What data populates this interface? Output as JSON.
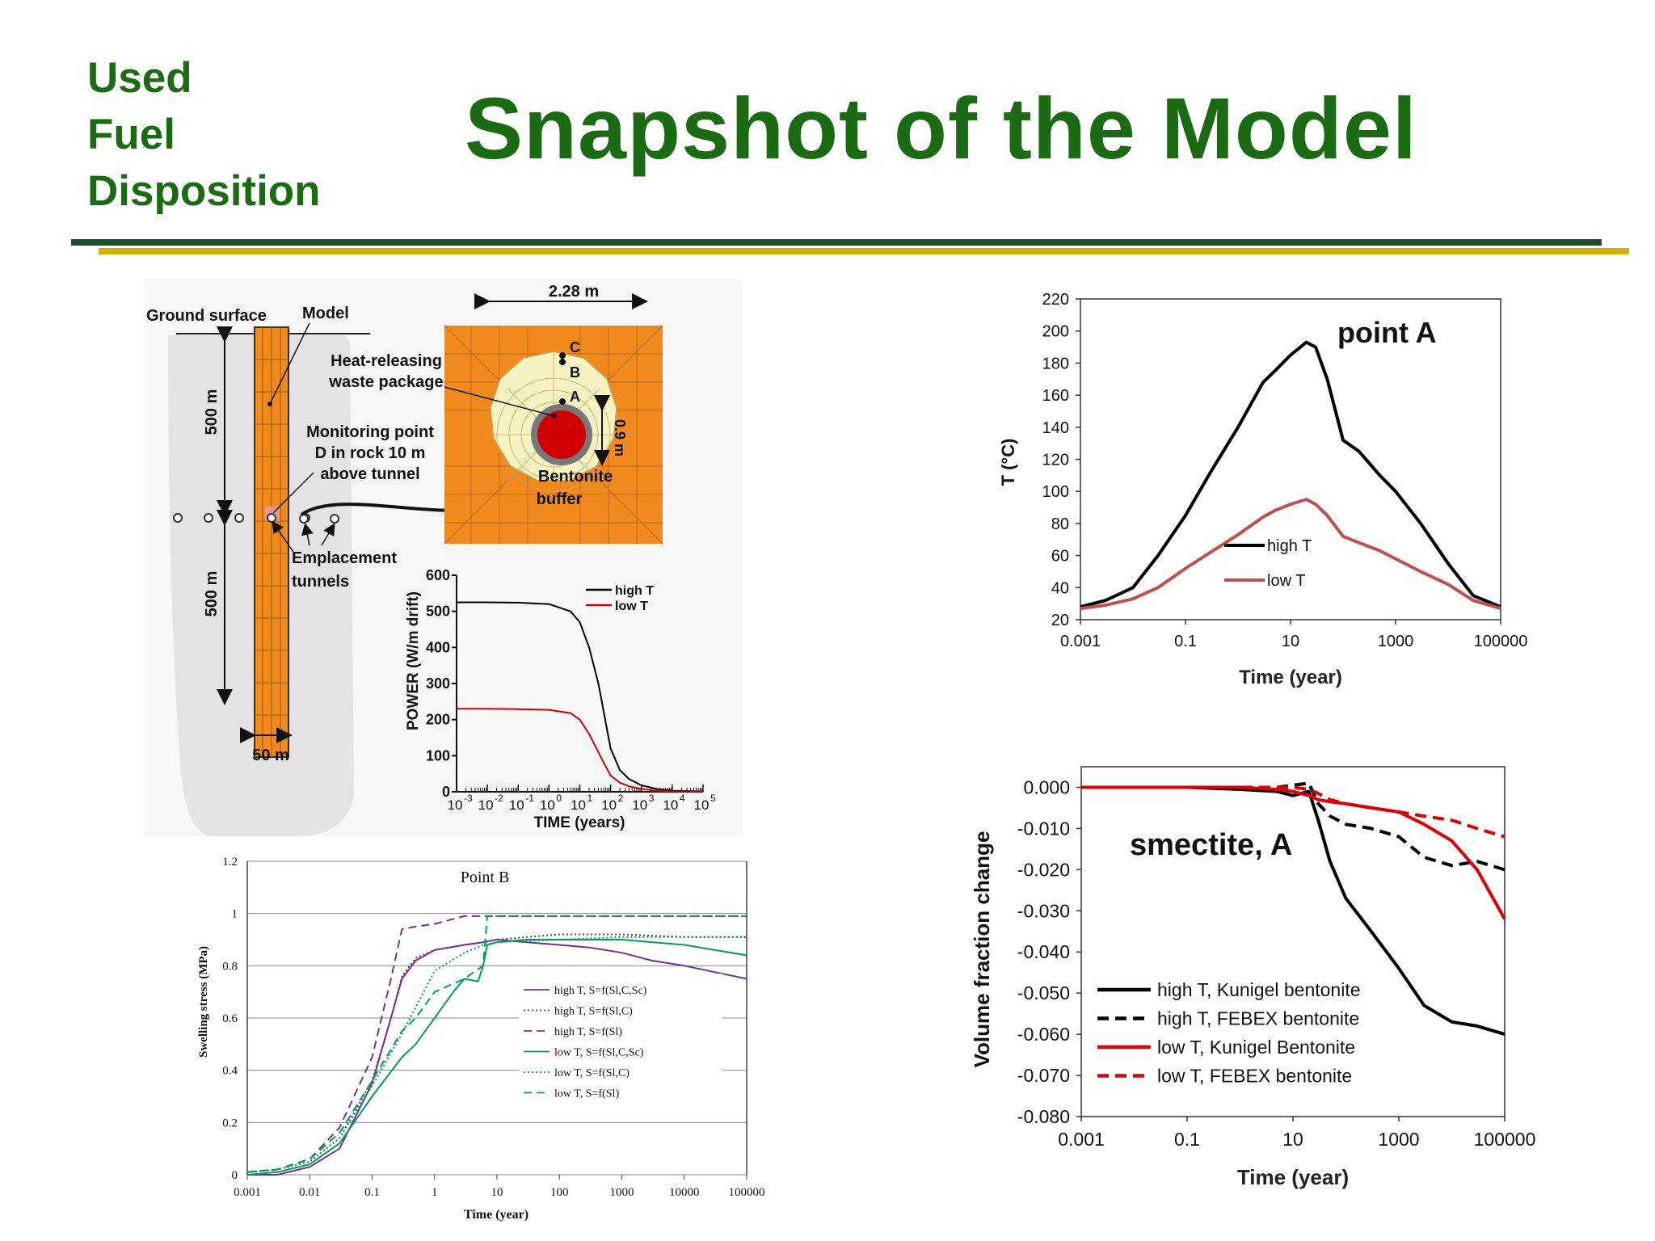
{
  "header": {
    "brand_lines": [
      "Used",
      "Fuel",
      "Disposition"
    ],
    "title": "Snapshot of the Model"
  },
  "colors": {
    "brand_green": "#1a6b12",
    "rule_green": "#1f4e2a",
    "rule_gold": "#d4b20a",
    "orange": "#f08a1c",
    "bentonite": "#f6f2c2",
    "red": "#d00000"
  },
  "diagram": {
    "ground_surface": "Ground surface",
    "model": "Model",
    "depth_top": "500 m",
    "depth_bottom": "500 m",
    "width": "50 m",
    "monitoring_line1": "Monitoring point",
    "monitoring_line2": "D in rock 10 m",
    "monitoring_line3": "above tunnel",
    "emplacement_line1": "Emplacement",
    "emplacement_line2": "tunnels",
    "heat_line1": "Heat-releasing",
    "heat_line2": "waste package",
    "drift_width": "2.28 m",
    "buffer_thickness": "0.9 m",
    "bentonite_line1": "Bentonite",
    "bentonite_line2": "buffer",
    "point_a": "A",
    "point_b": "B",
    "point_c": "C"
  },
  "chart_data": [
    {
      "id": "power",
      "type": "line",
      "xlabel": "TIME (years)",
      "ylabel": "POWER (W/m drift)",
      "x_scale": "log",
      "xlim": [
        0.001,
        100000
      ],
      "ylim": [
        0,
        600
      ],
      "x_ticks": [
        "-3",
        "-2",
        "-1",
        "0",
        "1",
        "2",
        "3",
        "4",
        "5"
      ],
      "x_tick_base": "10",
      "y_ticks": [
        "0",
        "100",
        "200",
        "300",
        "400",
        "500",
        "600"
      ],
      "legend": "top-right",
      "series": [
        {
          "name": "high T",
          "color": "#000000",
          "x": [
            0.001,
            0.01,
            0.1,
            1,
            5,
            10,
            20,
            40,
            60,
            100,
            200,
            400,
            1000,
            3000,
            10000,
            100000
          ],
          "y": [
            525,
            525,
            524,
            520,
            500,
            470,
            400,
            300,
            220,
            120,
            60,
            35,
            18,
            8,
            3,
            1
          ]
        },
        {
          "name": "low T",
          "color": "#d00000",
          "x": [
            0.001,
            0.01,
            0.1,
            1,
            5,
            10,
            20,
            40,
            60,
            100,
            200,
            400,
            1000,
            3000,
            10000,
            100000
          ],
          "y": [
            230,
            230,
            229,
            227,
            218,
            200,
            160,
            110,
            80,
            45,
            25,
            15,
            8,
            3,
            1,
            0
          ]
        }
      ]
    },
    {
      "id": "temperature",
      "type": "line",
      "title": "point A",
      "xlabel": "Time (year)",
      "ylabel": "T (°C)",
      "x_scale": "log",
      "xlim": [
        0.001,
        100000
      ],
      "ylim": [
        20,
        220
      ],
      "x_ticks": [
        "0.001",
        "0.1",
        "10",
        "1000",
        "100000"
      ],
      "y_ticks": [
        "20",
        "40",
        "60",
        "80",
        "100",
        "120",
        "140",
        "160",
        "180",
        "200",
        "220"
      ],
      "legend": "center-left",
      "series": [
        {
          "name": "high T",
          "color": "#000000",
          "x": [
            0.001,
            0.003,
            0.01,
            0.03,
            0.1,
            0.3,
            1,
            3,
            5,
            10,
            20,
            30,
            50,
            100,
            200,
            500,
            1000,
            3000,
            10000,
            30000,
            100000
          ],
          "y": [
            28,
            32,
            40,
            60,
            85,
            112,
            140,
            168,
            175,
            185,
            193,
            190,
            170,
            132,
            125,
            110,
            100,
            80,
            55,
            35,
            28
          ]
        },
        {
          "name": "low T",
          "color": "#c0504d",
          "x": [
            0.001,
            0.003,
            0.01,
            0.03,
            0.1,
            0.3,
            1,
            3,
            5,
            10,
            20,
            30,
            50,
            100,
            200,
            500,
            1000,
            3000,
            10000,
            30000,
            100000
          ],
          "y": [
            27,
            29,
            33,
            40,
            52,
            62,
            73,
            84,
            88,
            92,
            95,
            92,
            85,
            72,
            68,
            63,
            58,
            50,
            42,
            32,
            27
          ]
        }
      ]
    },
    {
      "id": "swelling",
      "type": "line",
      "title": "Point B",
      "xlabel": "Time (year)",
      "ylabel": "Swelling stress (MPa)",
      "x_scale": "log",
      "xlim": [
        0.001,
        100000
      ],
      "ylim": [
        0,
        1.2
      ],
      "x_ticks": [
        "0.001",
        "0.01",
        "0.1",
        "1",
        "10",
        "100",
        "1000",
        "10000",
        "100000"
      ],
      "y_ticks": [
        "0",
        "0.2",
        "0.4",
        "0.6",
        "0.8",
        "1",
        "1.2"
      ],
      "legend": "center-right",
      "series": [
        {
          "name": "high T, S=f(Sl,C,Sc)",
          "color": "#7030a0",
          "dash": "solid",
          "x": [
            0.001,
            0.003,
            0.01,
            0.03,
            0.1,
            0.2,
            0.3,
            0.5,
            1,
            3,
            6,
            10,
            30,
            100,
            300,
            1000,
            3000,
            10000,
            100000
          ],
          "y": [
            0,
            0,
            0.03,
            0.1,
            0.35,
            0.6,
            0.75,
            0.82,
            0.86,
            0.88,
            0.89,
            0.9,
            0.89,
            0.88,
            0.87,
            0.85,
            0.82,
            0.8,
            0.75
          ]
        },
        {
          "name": "high T, S=f(Sl,C)",
          "color": "#7030a0",
          "dash": "dotted",
          "x": [
            0.001,
            0.003,
            0.01,
            0.03,
            0.1,
            0.2,
            0.3,
            0.5,
            1,
            3,
            6,
            10,
            30,
            100,
            1000,
            10000,
            100000
          ],
          "y": [
            0.01,
            0.02,
            0.05,
            0.14,
            0.36,
            0.6,
            0.76,
            0.83,
            0.86,
            0.88,
            0.89,
            0.9,
            0.91,
            0.92,
            0.92,
            0.91,
            0.91
          ]
        },
        {
          "name": "high T, S=f(Sl)",
          "color": "#7030a0",
          "dash": "dashed",
          "x": [
            0.001,
            0.003,
            0.01,
            0.03,
            0.1,
            0.2,
            0.3,
            0.5,
            1,
            3,
            10,
            100,
            1000,
            10000,
            100000
          ],
          "y": [
            0.01,
            0.02,
            0.06,
            0.18,
            0.45,
            0.75,
            0.94,
            0.95,
            0.96,
            0.99,
            0.99,
            0.99,
            0.99,
            0.99,
            0.99
          ]
        },
        {
          "name": "low T, S=f(Sl,C,Sc)",
          "color": "#00a050",
          "dash": "solid",
          "x": [
            0.001,
            0.003,
            0.01,
            0.03,
            0.1,
            0.3,
            0.5,
            1,
            2,
            3,
            5,
            6,
            7,
            10,
            30,
            100,
            1000,
            10000,
            100000
          ],
          "y": [
            0,
            0.01,
            0.04,
            0.12,
            0.3,
            0.45,
            0.5,
            0.6,
            0.7,
            0.75,
            0.74,
            0.8,
            0.88,
            0.89,
            0.9,
            0.9,
            0.9,
            0.88,
            0.84
          ]
        },
        {
          "name": "low T, S=f(Sl,C)",
          "color": "#00a050",
          "dash": "dotted",
          "x": [
            0.001,
            0.003,
            0.01,
            0.03,
            0.1,
            0.3,
            1,
            3,
            6,
            10,
            100,
            1000,
            10000,
            100000
          ],
          "y": [
            0.01,
            0.02,
            0.05,
            0.14,
            0.34,
            0.54,
            0.78,
            0.85,
            0.88,
            0.89,
            0.9,
            0.91,
            0.91,
            0.91
          ]
        },
        {
          "name": "low T, S=f(Sl)",
          "color": "#00a050",
          "dash": "dashed",
          "x": [
            0.001,
            0.003,
            0.01,
            0.03,
            0.1,
            0.3,
            0.5,
            1,
            3,
            6,
            7,
            10,
            100,
            1000,
            10000,
            100000
          ],
          "y": [
            0.01,
            0.02,
            0.06,
            0.16,
            0.36,
            0.55,
            0.6,
            0.7,
            0.75,
            0.8,
            0.99,
            0.99,
            0.99,
            0.99,
            0.99,
            0.99
          ]
        }
      ]
    },
    {
      "id": "smectite",
      "type": "line",
      "title": "smectite, A",
      "xlabel": "Time (year)",
      "ylabel": "Volume fraction change",
      "x_scale": "log",
      "xlim": [
        0.001,
        100000
      ],
      "ylim": [
        -0.08,
        0.005
      ],
      "x_ticks": [
        "0.001",
        "0.1",
        "10",
        "1000",
        "100000"
      ],
      "y_ticks": [
        "0.000",
        "-0.010",
        "-0.020",
        "-0.030",
        "-0.040",
        "-0.050",
        "-0.060",
        "-0.070",
        "-0.080"
      ],
      "legend": "bottom-left",
      "series": [
        {
          "name": "high T, Kunigel bentonite",
          "color": "#000000",
          "dash": "solid",
          "x": [
            0.001,
            0.01,
            0.1,
            1,
            5,
            10,
            20,
            30,
            50,
            100,
            300,
            1000,
            3000,
            10000,
            30000,
            100000
          ],
          "y": [
            0,
            0,
            0,
            -0.0005,
            -0.001,
            -0.002,
            -0.001,
            -0.008,
            -0.018,
            -0.027,
            -0.035,
            -0.044,
            -0.053,
            -0.057,
            -0.058,
            -0.06
          ]
        },
        {
          "name": "high T, FEBEX bentonite",
          "color": "#000000",
          "dash": "dashed",
          "x": [
            0.001,
            0.01,
            0.1,
            1,
            5,
            10,
            20,
            30,
            50,
            100,
            300,
            1000,
            3000,
            10000,
            30000,
            100000
          ],
          "y": [
            0,
            0,
            0,
            0,
            0,
            0.0005,
            0.001,
            -0.004,
            -0.007,
            -0.009,
            -0.01,
            -0.012,
            -0.017,
            -0.019,
            -0.018,
            -0.02
          ]
        },
        {
          "name": "low T, Kunigel Bentonite",
          "color": "#e00000",
          "dash": "solid",
          "x": [
            0.001,
            0.01,
            0.1,
            1,
            5,
            10,
            20,
            30,
            50,
            100,
            300,
            1000,
            3000,
            10000,
            30000,
            100000
          ],
          "y": [
            0,
            0,
            0,
            0,
            -0.0005,
            -0.001,
            -0.002,
            -0.003,
            -0.0035,
            -0.004,
            -0.005,
            -0.006,
            -0.009,
            -0.013,
            -0.02,
            -0.032
          ]
        },
        {
          "name": "low T, FEBEX bentonite",
          "color": "#e00000",
          "dash": "dashed",
          "x": [
            0.001,
            0.01,
            0.1,
            1,
            5,
            10,
            20,
            30,
            50,
            100,
            300,
            1000,
            3000,
            10000,
            30000,
            100000
          ],
          "y": [
            0,
            0,
            0,
            0,
            0,
            0,
            -0.0005,
            -0.0015,
            -0.003,
            -0.004,
            -0.005,
            -0.006,
            -0.007,
            -0.008,
            -0.01,
            -0.012
          ]
        }
      ]
    }
  ]
}
